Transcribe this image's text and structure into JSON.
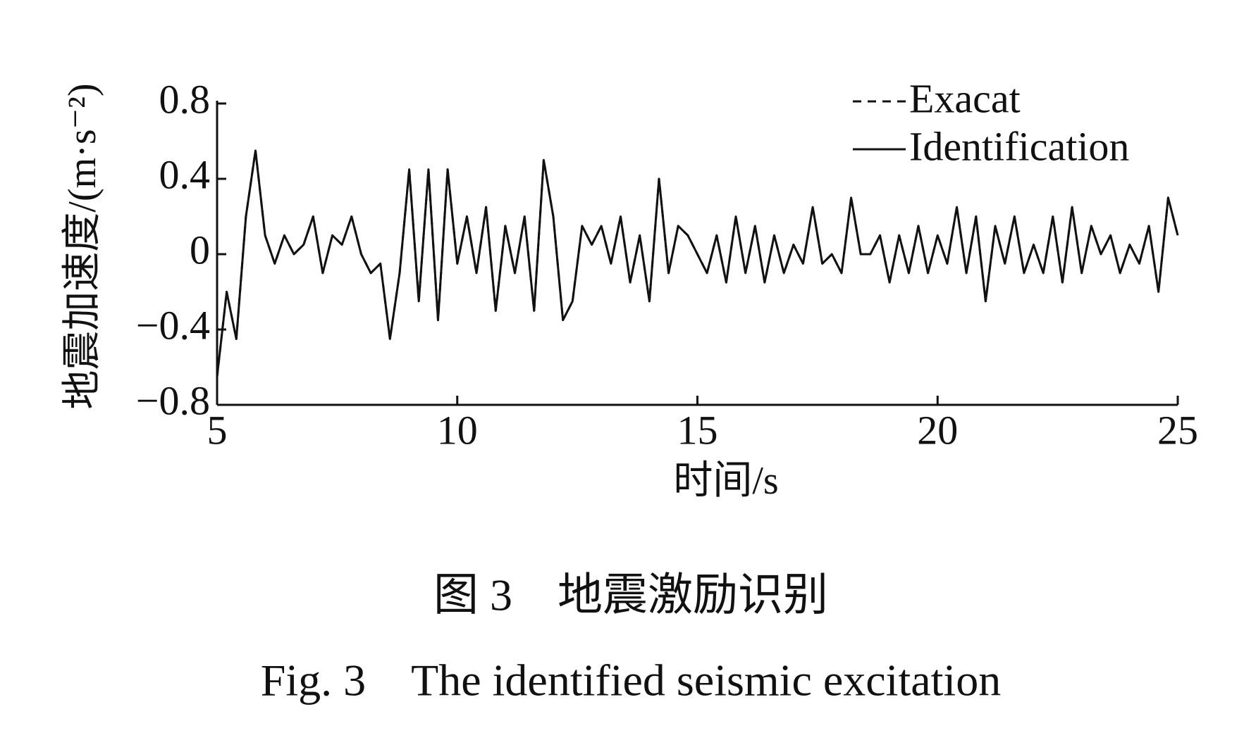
{
  "chart_data": {
    "type": "line",
    "ylabel": "地震加速度/(m·s⁻²)",
    "xlabel": "时间/s",
    "caption_cn": "图 3　地震激励识别",
    "caption_en": "Fig. 3　The identified seismic excitation",
    "xlim": [
      5,
      25
    ],
    "ylim": [
      -0.8,
      0.8
    ],
    "xticks": [
      5,
      10,
      15,
      20,
      25
    ],
    "yticks": [
      {
        "value": -0.8,
        "label": "−0.8"
      },
      {
        "value": -0.4,
        "label": "−0.4"
      },
      0,
      0.4,
      0.8
    ],
    "legend": "upper right",
    "x": [
      5.0,
      5.2,
      5.4,
      5.6,
      5.8,
      6.0,
      6.2,
      6.4,
      6.6,
      6.8,
      7.0,
      7.2,
      7.4,
      7.6,
      7.8,
      8.0,
      8.2,
      8.4,
      8.6,
      8.8,
      9.0,
      9.2,
      9.4,
      9.6,
      9.8,
      10.0,
      10.2,
      10.4,
      10.6,
      10.8,
      11.0,
      11.2,
      11.4,
      11.6,
      11.8,
      12.0,
      12.2,
      12.4,
      12.6,
      12.8,
      13.0,
      13.2,
      13.4,
      13.6,
      13.8,
      14.0,
      14.2,
      14.4,
      14.6,
      14.8,
      15.0,
      15.2,
      15.4,
      15.6,
      15.8,
      16.0,
      16.2,
      16.4,
      16.6,
      16.8,
      17.0,
      17.2,
      17.4,
      17.6,
      17.8,
      18.0,
      18.2,
      18.4,
      18.6,
      18.8,
      19.0,
      19.2,
      19.4,
      19.6,
      19.8,
      20.0,
      20.2,
      20.4,
      20.6,
      20.8,
      21.0,
      21.2,
      21.4,
      21.6,
      21.8,
      22.0,
      22.2,
      22.4,
      22.6,
      22.8,
      23.0,
      23.2,
      23.4,
      23.6,
      23.8,
      24.0,
      24.2,
      24.4,
      24.6,
      24.8,
      25.0
    ],
    "series": [
      {
        "name": "Exacat",
        "color": "#111111",
        "dash": true,
        "values": [
          -0.65,
          -0.2,
          -0.45,
          0.2,
          0.55,
          0.1,
          -0.05,
          0.1,
          0.0,
          0.05,
          0.2,
          -0.1,
          0.1,
          0.05,
          0.2,
          0.0,
          -0.1,
          -0.05,
          -0.45,
          -0.1,
          0.45,
          -0.25,
          0.45,
          -0.35,
          0.45,
          -0.05,
          0.2,
          -0.1,
          0.25,
          -0.3,
          0.15,
          -0.1,
          0.2,
          -0.3,
          0.5,
          0.2,
          -0.35,
          -0.25,
          0.15,
          0.05,
          0.15,
          -0.05,
          0.2,
          -0.15,
          0.1,
          -0.25,
          0.4,
          -0.1,
          0.15,
          0.1,
          0.0,
          -0.1,
          0.1,
          -0.15,
          0.2,
          -0.1,
          0.15,
          -0.15,
          0.1,
          -0.1,
          0.05,
          -0.05,
          0.25,
          -0.05,
          0.0,
          -0.1,
          0.3,
          0.0,
          0.0,
          0.1,
          -0.15,
          0.1,
          -0.1,
          0.15,
          -0.1,
          0.1,
          -0.05,
          0.25,
          -0.1,
          0.2,
          -0.25,
          0.15,
          -0.05,
          0.2,
          -0.1,
          0.05,
          -0.1,
          0.2,
          -0.15,
          0.25,
          -0.1,
          0.15,
          0.0,
          0.1,
          -0.1,
          0.05,
          -0.05,
          0.15,
          -0.2,
          0.3,
          0.1
        ]
      },
      {
        "name": "Identification",
        "color": "#111111",
        "dash": false,
        "values": [
          -0.65,
          -0.2,
          -0.45,
          0.2,
          0.55,
          0.1,
          -0.05,
          0.1,
          0.0,
          0.05,
          0.2,
          -0.1,
          0.1,
          0.05,
          0.2,
          0.0,
          -0.1,
          -0.05,
          -0.45,
          -0.1,
          0.45,
          -0.25,
          0.45,
          -0.35,
          0.45,
          -0.05,
          0.2,
          -0.1,
          0.25,
          -0.3,
          0.15,
          -0.1,
          0.2,
          -0.3,
          0.5,
          0.2,
          -0.35,
          -0.25,
          0.15,
          0.05,
          0.15,
          -0.05,
          0.2,
          -0.15,
          0.1,
          -0.25,
          0.4,
          -0.1,
          0.15,
          0.1,
          0.0,
          -0.1,
          0.1,
          -0.15,
          0.2,
          -0.1,
          0.15,
          -0.15,
          0.1,
          -0.1,
          0.05,
          -0.05,
          0.25,
          -0.05,
          0.0,
          -0.1,
          0.3,
          0.0,
          0.0,
          0.1,
          -0.15,
          0.1,
          -0.1,
          0.15,
          -0.1,
          0.1,
          -0.05,
          0.25,
          -0.1,
          0.2,
          -0.25,
          0.15,
          -0.05,
          0.2,
          -0.1,
          0.05,
          -0.1,
          0.2,
          -0.15,
          0.25,
          -0.1,
          0.15,
          0.0,
          0.1,
          -0.1,
          0.05,
          -0.05,
          0.15,
          -0.2,
          0.3,
          0.1
        ]
      }
    ]
  }
}
